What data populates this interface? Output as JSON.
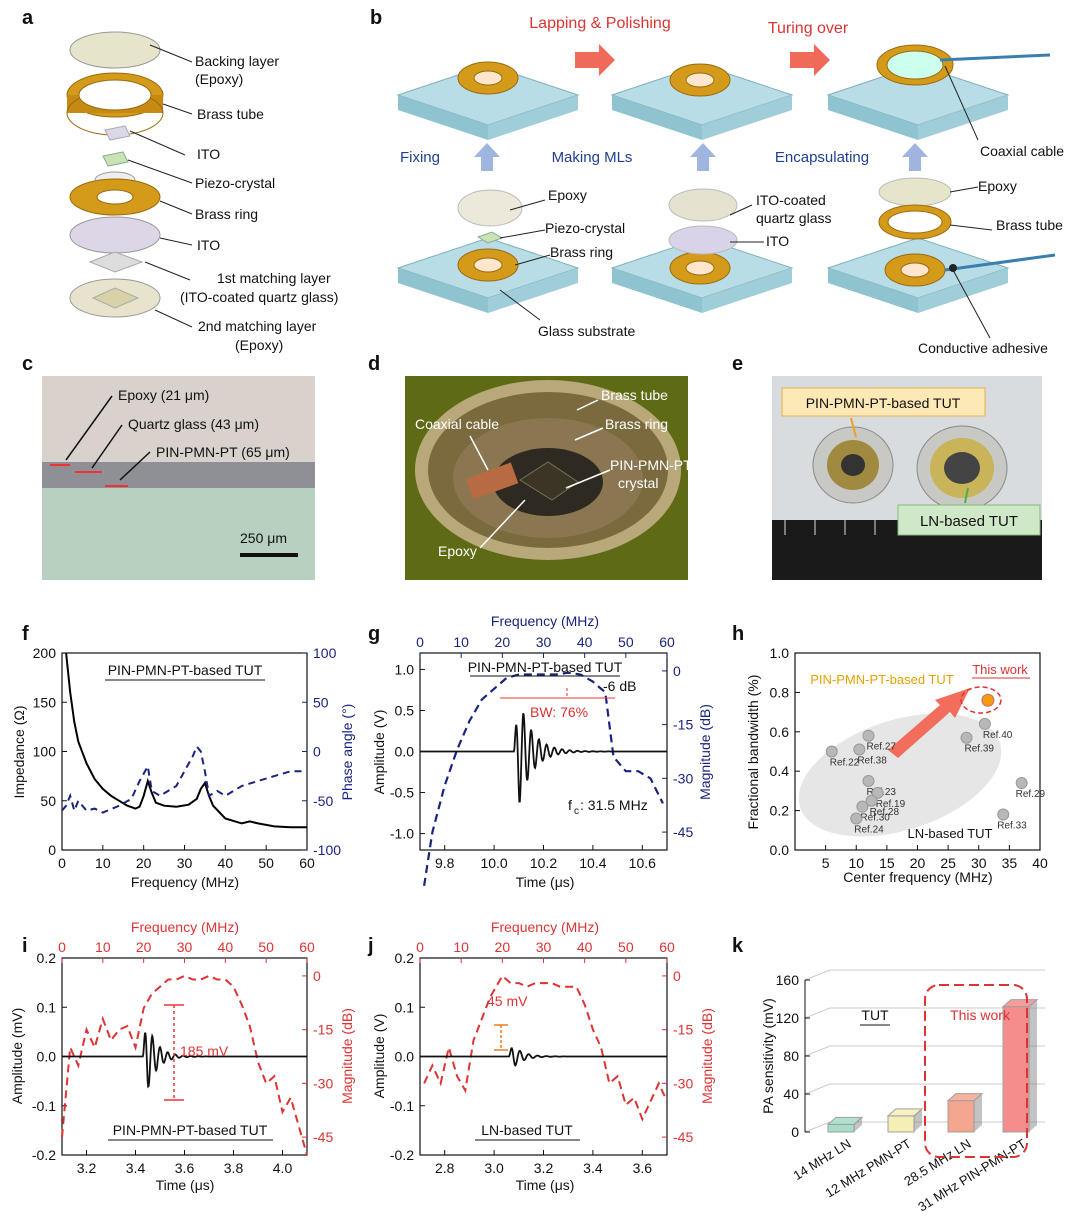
{
  "panels": {
    "a": {
      "letter": "a",
      "labels": [
        "Backing layer",
        "(Epoxy)",
        "Brass tube",
        "ITO",
        "Piezo-crystal",
        "Brass ring",
        "ITO",
        "1st matching layer",
        "(ITO-coated quartz glass)",
        "2nd matching layer",
        "(Epoxy)"
      ]
    },
    "b": {
      "letter": "b",
      "steps_top": [
        "Lapping & Polishing",
        "Turing over"
      ],
      "arrows_mid": [
        "Fixing",
        "Making MLs",
        "Encapsulating"
      ],
      "labels": [
        "Coaxial cable",
        "Epoxy",
        "Piezo-crystal",
        "Brass ring",
        "Glass substrate",
        "ITO-coated",
        "quartz glass",
        "ITO",
        "Epoxy",
        "Brass tube",
        "Conductive adhesive"
      ]
    },
    "c": {
      "letter": "c",
      "labels": [
        "Epoxy (21 μm)",
        "Quartz glass (43 μm)",
        "PIN-PMN-PT (65 μm)"
      ],
      "scale": "250 μm"
    },
    "d": {
      "letter": "d",
      "labels": [
        "Brass tube",
        "Brass ring",
        "Coaxial cable",
        "PIN-PMN-PT",
        "crystal",
        "Epoxy"
      ]
    },
    "e": {
      "letter": "e",
      "labels": [
        "PIN-PMN-PT-based TUT",
        "LN-based TUT"
      ]
    },
    "f": {
      "letter": "f",
      "title": "PIN-PMN-PT-based TUT",
      "xlabel": "Frequency (MHz)",
      "ylabel_left": "Impedance (Ω)",
      "ylabel_right": "Phase angle (°)"
    },
    "g": {
      "letter": "g",
      "title": "PIN-PMN-PT-based TUT",
      "top_label": "Frequency (MHz)",
      "xlabel": "Time (μs)",
      "ylabel_left": "Amplitude (V)",
      "ylabel_right": "Magnitude (dB)",
      "ann_db": "-6 dB",
      "ann_bw": "BW: 76%",
      "ann_fc": "f",
      "ann_fc_sub": "c",
      "ann_fc_val": ": 31.5 MHz"
    },
    "h": {
      "letter": "h",
      "xlabel": "Center frequency (MHz)",
      "ylabel": "Fractional bandwidth (%)",
      "pin_label": "PIN-PMN-PT-based TUT",
      "this_work": "This work",
      "ln_label": "LN-based TUT"
    },
    "i": {
      "letter": "i",
      "title": "PIN-PMN-PT-based TUT",
      "top_label": "Frequency (MHz)",
      "xlabel": "Time (μs)",
      "ylabel_left": "Amplitude (mV)",
      "ylabel_right": "Magnitude (dB)",
      "ann": "185 mV"
    },
    "j": {
      "letter": "j",
      "title": "LN-based TUT",
      "top_label": "Frequency (MHz)",
      "xlabel": "Time (μs)",
      "ylabel_left": "Amplitude (V)",
      "ylabel_right": "Magnitude (dB)",
      "ann": "45 mV"
    },
    "k": {
      "letter": "k",
      "ylabel": "PA sensitivity (mV)",
      "tut": "TUT",
      "this_work": "This work"
    }
  },
  "chart_data": [
    {
      "id": "f",
      "type": "line",
      "x_range": [
        0,
        60
      ],
      "y_left_range": [
        0,
        200
      ],
      "y_right_range": [
        -100,
        100
      ],
      "x_ticks": [
        "0",
        "10",
        "20",
        "30",
        "40",
        "50",
        "60"
      ],
      "y_left_ticks": [
        "0",
        "50",
        "100",
        "150",
        "200"
      ],
      "y_right_ticks": [
        "-100",
        "-50",
        "0",
        "50",
        "100"
      ],
      "series": [
        {
          "axis": "left",
          "color": "#000000",
          "style": "solid",
          "x": [
            1,
            2,
            3,
            4,
            6,
            8,
            10,
            12,
            14,
            16,
            18,
            19,
            20,
            21,
            22,
            23,
            25,
            28,
            31,
            33,
            34,
            35,
            36,
            37,
            40,
            44,
            46,
            48,
            52,
            56,
            60
          ],
          "y": [
            200,
            160,
            130,
            110,
            88,
            72,
            62,
            55,
            50,
            45,
            42,
            44,
            55,
            70,
            58,
            48,
            45,
            44,
            46,
            52,
            62,
            68,
            55,
            45,
            32,
            27,
            29,
            27,
            24,
            23,
            23
          ]
        },
        {
          "axis": "right",
          "color": "#1a237e",
          "style": "dashed",
          "x": [
            0,
            1,
            2,
            3,
            4,
            6,
            8,
            10,
            14,
            17,
            19,
            21,
            22,
            24,
            26,
            28,
            30,
            32,
            33,
            34,
            35,
            36,
            38,
            40,
            44,
            48,
            52,
            56,
            60
          ],
          "y": [
            -60,
            -55,
            -45,
            -60,
            -50,
            -60,
            -58,
            -62,
            -55,
            -48,
            -30,
            -15,
            -40,
            -45,
            -40,
            -35,
            -20,
            -5,
            5,
            0,
            -20,
            -45,
            -40,
            -45,
            -35,
            -30,
            -25,
            -20,
            -20
          ]
        }
      ]
    },
    {
      "id": "g",
      "type": "line",
      "x_range": [
        9.7,
        10.7
      ],
      "y_left_range": [
        -1.2,
        1.2
      ],
      "top_range": [
        0,
        60
      ],
      "y_right_range": [
        -50,
        5
      ],
      "x_ticks": [
        "9.8",
        "10.0",
        "10.2",
        "10.4",
        "10.6"
      ],
      "y_left_ticks": [
        "-1.0",
        "-0.5",
        "0.0",
        "0.5",
        "1.0"
      ],
      "top_ticks": [
        "0",
        "10",
        "20",
        "30",
        "40",
        "50",
        "60"
      ],
      "y_right_ticks": [
        "-45",
        "-30",
        "-15",
        "0"
      ]
    },
    {
      "id": "h",
      "type": "scatter",
      "x_range": [
        0,
        40
      ],
      "y_range": [
        0,
        1.0
      ],
      "x_ticks": [
        "5",
        "10",
        "15",
        "20",
        "25",
        "30",
        "35",
        "40"
      ],
      "y_ticks": [
        "0.0",
        "0.2",
        "0.4",
        "0.6",
        "0.8",
        "1.0"
      ],
      "points": [
        {
          "label": "Ref.22",
          "x": 6,
          "y": 0.5
        },
        {
          "label": "Ref.38",
          "x": 10.5,
          "y": 0.51
        },
        {
          "label": "Ref.27",
          "x": 12,
          "y": 0.58
        },
        {
          "label": "Ref.23",
          "x": 12,
          "y": 0.35
        },
        {
          "label": "Ref.19",
          "x": 13.5,
          "y": 0.29
        },
        {
          "label": "Ref.28",
          "x": 12.5,
          "y": 0.25
        },
        {
          "label": "Ref.30",
          "x": 11,
          "y": 0.22
        },
        {
          "label": "Ref.24",
          "x": 10,
          "y": 0.16
        },
        {
          "label": "Ref.39",
          "x": 28,
          "y": 0.57
        },
        {
          "label": "Ref.40",
          "x": 31,
          "y": 0.64
        },
        {
          "label": "Ref.29",
          "x": 37,
          "y": 0.34
        },
        {
          "label": "Ref.33",
          "x": 34,
          "y": 0.18
        },
        {
          "label": "This work",
          "x": 31.5,
          "y": 0.76,
          "highlight": true
        }
      ]
    },
    {
      "id": "i",
      "type": "line",
      "x_range": [
        3.1,
        4.1
      ],
      "y_left_range": [
        -0.2,
        0.2
      ],
      "top_range": [
        0,
        60
      ],
      "y_right_range": [
        -50,
        5
      ],
      "x_ticks": [
        "3.2",
        "3.4",
        "3.6",
        "3.8",
        "4.0"
      ],
      "y_left_ticks": [
        "-0.2",
        "-0.1",
        "0.0",
        "0.1",
        "0.2"
      ],
      "top_ticks": [
        "0",
        "10",
        "20",
        "30",
        "40",
        "50",
        "60"
      ],
      "y_right_ticks": [
        "-45",
        "-30",
        "-15",
        "0"
      ]
    },
    {
      "id": "j",
      "type": "line",
      "x_range": [
        2.7,
        3.7
      ],
      "y_left_range": [
        -0.2,
        0.2
      ],
      "top_range": [
        0,
        60
      ],
      "y_right_range": [
        -50,
        5
      ],
      "x_ticks": [
        "2.8",
        "3.0",
        "3.2",
        "3.4",
        "3.6"
      ],
      "y_left_ticks": [
        "-0.2",
        "-0.1",
        "0.0",
        "0.1",
        "0.2"
      ],
      "top_ticks": [
        "0",
        "10",
        "20",
        "30",
        "40",
        "50",
        "60"
      ],
      "y_right_ticks": [
        "-45",
        "-30",
        "-15",
        "0"
      ]
    },
    {
      "id": "k",
      "type": "bar",
      "categories": [
        "14 MHz LN",
        "12 MHz PMN-PT",
        "28.5 MHz LN",
        "31 MHz PIN-PMN-PT"
      ],
      "values": [
        8,
        17,
        33,
        132
      ],
      "colors": [
        "#a7dcc6",
        "#f3efb6",
        "#f4a68f",
        "#f58d8d"
      ],
      "y_range": [
        0,
        160
      ],
      "y_ticks": [
        "0",
        "40",
        "80",
        "120",
        "160"
      ]
    }
  ]
}
